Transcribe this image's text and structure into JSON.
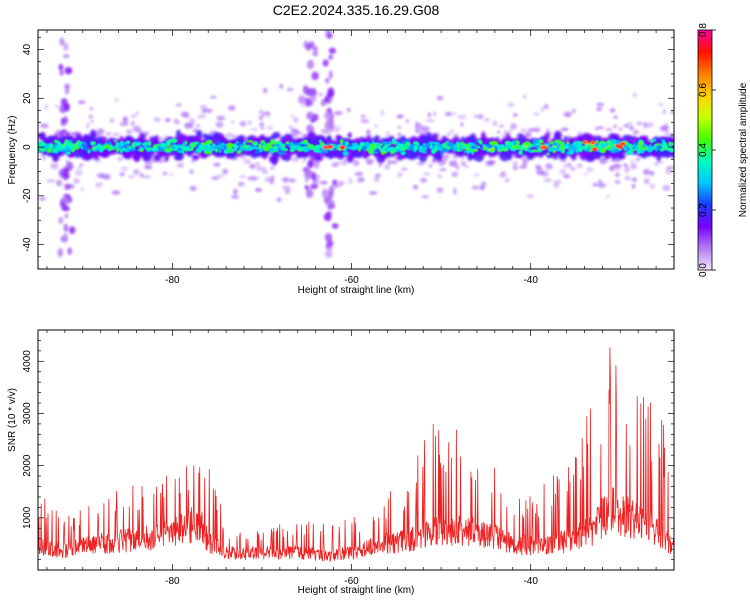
{
  "figure": {
    "title": "C2E2.2024.335.16.29.G08"
  },
  "chart_data": [
    {
      "type": "heatmap",
      "title": "C2E2.2024.335.16.29.G08",
      "xlabel": "Height of straight line (km)",
      "ylabel": "Frequency (Hz)",
      "xlim": [
        -95,
        -24
      ],
      "ylim": [
        -50,
        48
      ],
      "x_ticks": [
        -80,
        -60,
        -40
      ],
      "y_ticks": [
        -40,
        -20,
        0,
        20,
        40
      ],
      "colorbar": {
        "label": "Normalized spectral amplitude",
        "range": [
          0.0,
          0.8
        ],
        "ticks": [
          "0.0",
          "0.2",
          "0.4",
          "0.6",
          "0.8"
        ],
        "colors": [
          "#f3e6fb",
          "#b27cf3",
          "#7a00ff",
          "#1a3dff",
          "#00c8ff",
          "#00ffbe",
          "#44ff00",
          "#c8ff00",
          "#ffd400",
          "#ff7a00",
          "#ff1000",
          "#ff00a0"
        ]
      },
      "band": {
        "center_hz": 0,
        "half_width_hz": 6,
        "notes_peak_heights_km": [
          -39,
          -33,
          -30,
          -62
        ]
      },
      "streaks": [
        {
          "x_km": -92,
          "from_hz": -45,
          "to_hz": 45
        },
        {
          "x_km": -62.5,
          "from_hz": -48,
          "to_hz": 48
        },
        {
          "x_km": -64.5,
          "from_hz": -20,
          "to_hz": 42
        }
      ],
      "grid": false,
      "legend": "right colorbar"
    },
    {
      "type": "line",
      "xlabel": "Height of straight line (km)",
      "ylabel": "SNR (10 * v/v)",
      "xlim": [
        -95,
        -24
      ],
      "ylim": [
        0,
        4600
      ],
      "x_ticks": [
        -80,
        -60,
        -40
      ],
      "y_ticks": [
        1000,
        2000,
        3000,
        4000
      ],
      "color": "#ee2222",
      "grid": false,
      "envelope": {
        "x": [
          -95,
          -92,
          -89,
          -86,
          -83,
          -80,
          -77,
          -76,
          -74,
          -70,
          -66,
          -63,
          -60,
          -57,
          -54,
          -51,
          -48,
          -45,
          -42,
          -39,
          -36,
          -33,
          -31,
          -29,
          -26,
          -24
        ],
        "base": [
          400,
          350,
          450,
          500,
          550,
          650,
          850,
          500,
          300,
          300,
          320,
          250,
          300,
          450,
          500,
          650,
          700,
          650,
          450,
          420,
          500,
          700,
          1100,
          900,
          700,
          400
        ],
        "peak": [
          1500,
          1000,
          1300,
          1550,
          1800,
          2250,
          2000,
          2300,
          900,
          750,
          1050,
          900,
          1000,
          1400,
          1700,
          3100,
          2800,
          2500,
          1400,
          1600,
          2100,
          3300,
          4550,
          3600,
          3300,
          2100
        ]
      }
    }
  ]
}
